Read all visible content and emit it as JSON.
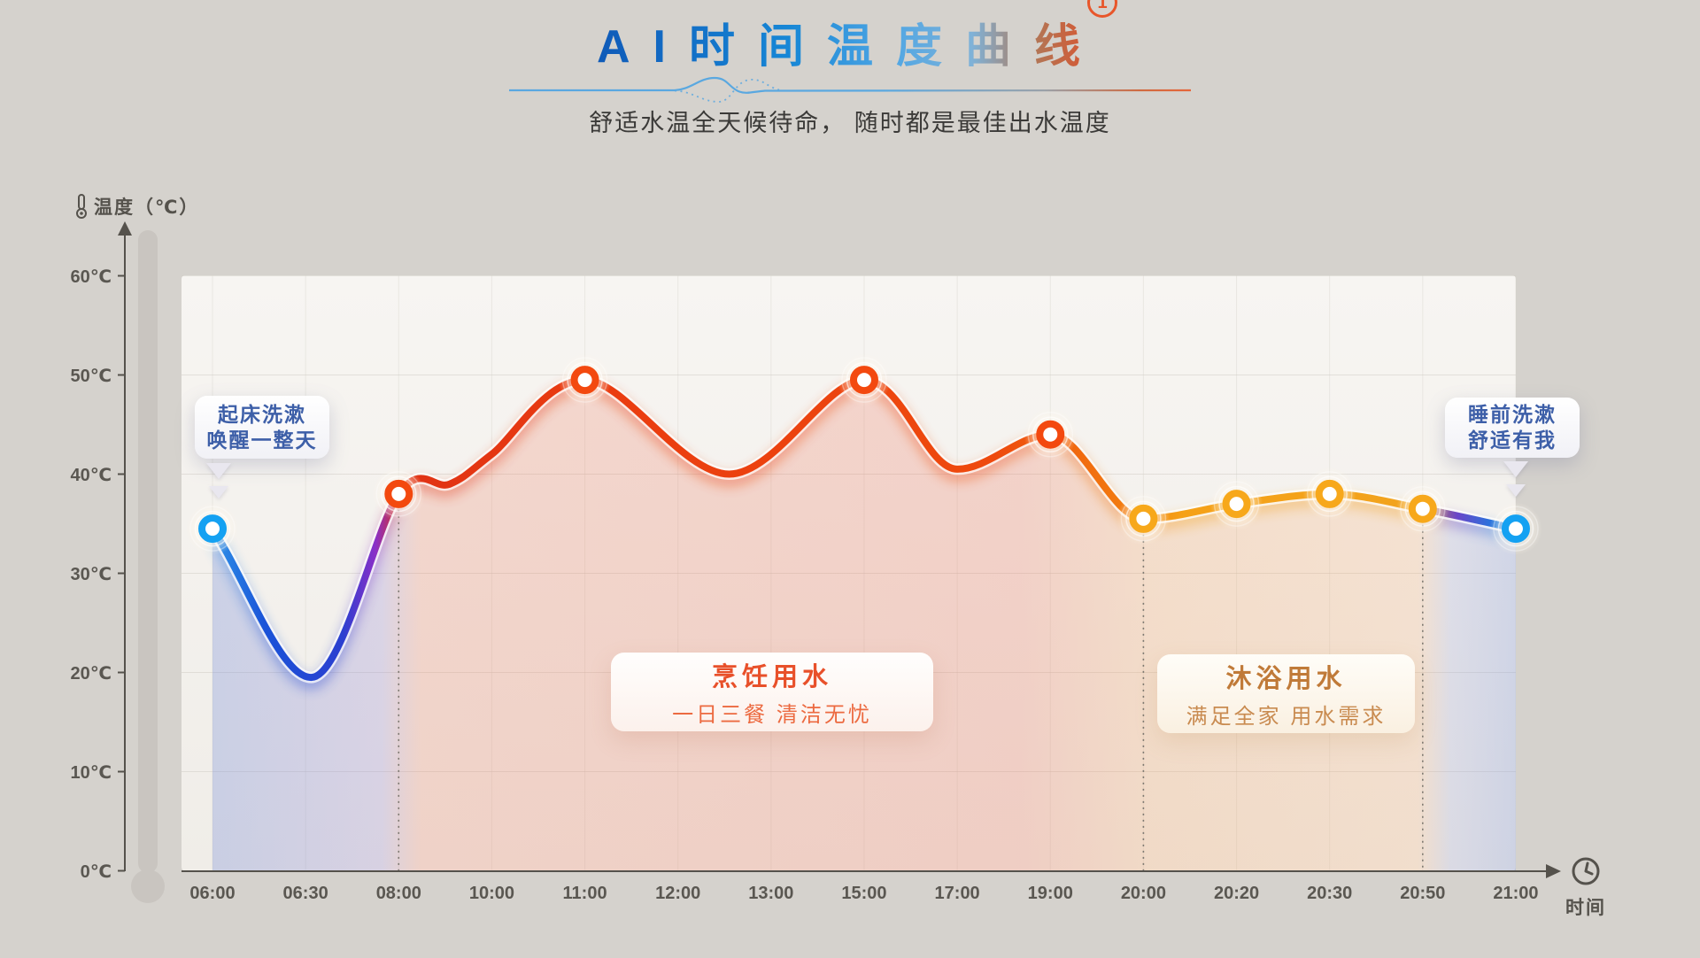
{
  "page": {
    "background": "#d5d2cd"
  },
  "header": {
    "title": "AI时间温度曲线",
    "title_sup": "1",
    "subtitle": "舒适水温全天候待命， 随时都是最佳出水温度"
  },
  "y_axis": {
    "label": "温度（℃）",
    "ticks": [
      "60℃",
      "50℃",
      "40℃",
      "30℃",
      "20℃",
      "10℃",
      "0℃"
    ],
    "tick_values": [
      60,
      50,
      40,
      30,
      20,
      10,
      0
    ]
  },
  "x_axis": {
    "label": "时间",
    "ticks": [
      "06:00",
      "06:30",
      "08:00",
      "10:00",
      "11:00",
      "12:00",
      "13:00",
      "15:00",
      "17:00",
      "19:00",
      "20:00",
      "20:20",
      "20:30",
      "20:50",
      "21:00"
    ]
  },
  "callouts": {
    "morning": {
      "line1": "起床洗漱",
      "line2": "唤醒一整天"
    },
    "night": {
      "line1": "睡前洗漱",
      "line2": "舒适有我"
    }
  },
  "regions": {
    "cooking": {
      "title": "烹饪用水",
      "desc": "一日三餐 清洁无忧",
      "from": "08:00",
      "to": "20:00"
    },
    "bathing": {
      "title": "沐浴用水",
      "desc": "满足全家 用水需求",
      "from": "20:00",
      "to": "20:50"
    }
  },
  "chart_data": {
    "type": "line",
    "title": "AI时间温度曲线",
    "xlabel": "时间",
    "ylabel": "温度（℃）",
    "ylim": [
      0,
      60
    ],
    "grid": true,
    "x_categories": [
      "06:00",
      "06:30",
      "08:00",
      "10:00",
      "11:00",
      "12:00",
      "13:00",
      "15:00",
      "17:00",
      "19:00",
      "20:00",
      "20:20",
      "20:30",
      "20:50",
      "21:00"
    ],
    "points": [
      {
        "time": "06:00",
        "temp": 34.5,
        "marker": "blue"
      },
      {
        "time": "06:30",
        "temp": 19.5,
        "marker": null
      },
      {
        "time": "08:00",
        "temp": 38,
        "marker": "red"
      },
      {
        "time": "10:00",
        "temp": 42,
        "marker": null
      },
      {
        "time": "11:00",
        "temp": 49.5,
        "marker": "red"
      },
      {
        "time": "12:30",
        "temp": 40,
        "marker": null
      },
      {
        "time": "15:00",
        "temp": 49.5,
        "marker": "red"
      },
      {
        "time": "17:00",
        "temp": 40.5,
        "marker": null
      },
      {
        "time": "19:00",
        "temp": 44,
        "marker": "red"
      },
      {
        "time": "20:00",
        "temp": 35.5,
        "marker": "gold"
      },
      {
        "time": "20:20",
        "temp": 37,
        "marker": "gold"
      },
      {
        "time": "20:30",
        "temp": 38,
        "marker": "gold"
      },
      {
        "time": "20:50",
        "temp": 36.5,
        "marker": "gold"
      },
      {
        "time": "21:00",
        "temp": 34.5,
        "marker": "blue"
      }
    ],
    "anchors": [
      {
        "i": 0,
        "temp": 34.5
      },
      {
        "i": 1.06,
        "temp": 19.5
      },
      {
        "i": 2,
        "temp": 38
      },
      {
        "i": 2.55,
        "temp": 39
      },
      {
        "i": 3,
        "temp": 42
      },
      {
        "i": 4,
        "temp": 49.5
      },
      {
        "i": 5.55,
        "temp": 40
      },
      {
        "i": 7,
        "temp": 49.5
      },
      {
        "i": 8,
        "temp": 40.5
      },
      {
        "i": 9,
        "temp": 44
      },
      {
        "i": 10,
        "temp": 35.5
      },
      {
        "i": 11,
        "temp": 37
      },
      {
        "i": 12,
        "temp": 38
      },
      {
        "i": 13,
        "temp": 36.5
      },
      {
        "i": 14,
        "temp": 34.5
      }
    ],
    "markers": [
      {
        "time": "06:00",
        "temp": 34.5,
        "style": "blue"
      },
      {
        "time": "08:00",
        "temp": 38,
        "style": "red"
      },
      {
        "time": "11:00",
        "temp": 49.5,
        "style": "red"
      },
      {
        "time": "15:00",
        "temp": 49.5,
        "style": "red"
      },
      {
        "time": "19:00",
        "temp": 44,
        "style": "red"
      },
      {
        "time": "20:00",
        "temp": 35.5,
        "style": "gold"
      },
      {
        "time": "20:20",
        "temp": 37,
        "style": "gold"
      },
      {
        "time": "20:30",
        "temp": 38,
        "style": "gold"
      },
      {
        "time": "20:50",
        "temp": 36.5,
        "style": "gold"
      },
      {
        "time": "21:00",
        "temp": 34.5,
        "style": "blue"
      }
    ],
    "boundaries": [
      "08:00",
      "20:00",
      "20:50"
    ],
    "colors": {
      "marker": {
        "blue": "#14a1f2",
        "red": "#f3490f",
        "gold": "#f7a81b"
      },
      "axis": "#55524c",
      "grid": "#d2cec6",
      "dotted": "#7c7870",
      "plot_bg_top": "#f7f5f2",
      "plot_bg_bottom": "#f0ede8",
      "thermometer": "#c9c5c0",
      "line_stops": [
        [
          0,
          "#2e93e8"
        ],
        [
          0.04,
          "#1a53d8"
        ],
        [
          0.1,
          "#2b3fd0"
        ],
        [
          0.125,
          "#8a2fc8"
        ],
        [
          0.145,
          "#e03214"
        ],
        [
          0.3,
          "#ea3c10"
        ],
        [
          0.6,
          "#ee4a0e"
        ],
        [
          0.7,
          "#f27c10"
        ],
        [
          0.745,
          "#f5a118"
        ],
        [
          0.92,
          "#f2a31d"
        ],
        [
          0.955,
          "#6a46c8"
        ],
        [
          0.985,
          "#1f7ae0"
        ],
        [
          1,
          "#2e93e8"
        ]
      ],
      "fill_stops": [
        [
          0,
          "rgba(110,135,215,0.30)"
        ],
        [
          0.13,
          "rgba(145,130,210,0.26)"
        ],
        [
          0.16,
          "rgba(235,115,85,0.22)"
        ],
        [
          0.62,
          "rgba(235,105,80,0.24)"
        ],
        [
          0.72,
          "rgba(242,150,80,0.22)"
        ],
        [
          0.925,
          "rgba(244,160,95,0.20)"
        ],
        [
          0.95,
          "rgba(150,160,215,0.24)"
        ],
        [
          1,
          "rgba(125,148,215,0.30)"
        ]
      ]
    }
  }
}
